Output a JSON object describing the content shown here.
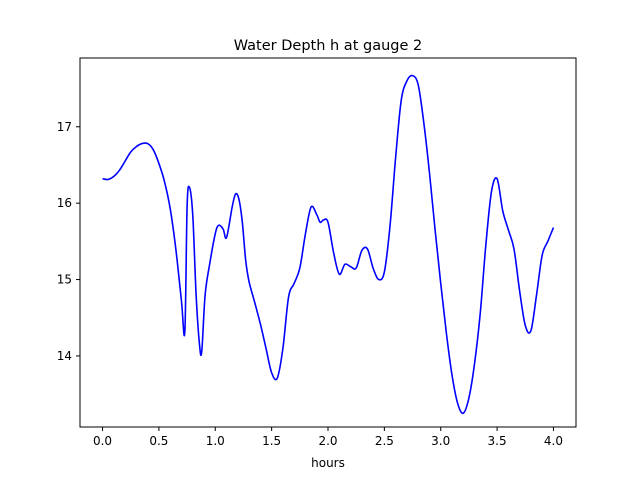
{
  "chart_data": {
    "type": "line",
    "title": "Water Depth h at gauge 2",
    "xlabel": "hours",
    "ylabel": "",
    "xlim": [
      -0.2,
      4.2
    ],
    "ylim": [
      13.07,
      17.9
    ],
    "xticks": [
      0.0,
      0.5,
      1.0,
      1.5,
      2.0,
      2.5,
      3.0,
      3.5,
      4.0
    ],
    "xtick_labels": [
      "0.0",
      "0.5",
      "1.0",
      "1.5",
      "2.0",
      "2.5",
      "3.0",
      "3.5",
      "4.0"
    ],
    "yticks": [
      14,
      15,
      16,
      17
    ],
    "ytick_labels": [
      "14",
      "15",
      "16",
      "17"
    ],
    "grid": false,
    "legend": "none",
    "series": [
      {
        "color": "#0000ff",
        "x": [
          0.0,
          0.05,
          0.1,
          0.15,
          0.2,
          0.25,
          0.3,
          0.35,
          0.4,
          0.45,
          0.5,
          0.55,
          0.6,
          0.65,
          0.7,
          0.73,
          0.75,
          0.77,
          0.8,
          0.83,
          0.86,
          0.88,
          0.91,
          0.95,
          1.0,
          1.03,
          1.07,
          1.1,
          1.15,
          1.18,
          1.21,
          1.24,
          1.27,
          1.3,
          1.35,
          1.4,
          1.45,
          1.5,
          1.55,
          1.6,
          1.65,
          1.7,
          1.75,
          1.8,
          1.85,
          1.9,
          1.93,
          1.96,
          2.0,
          2.05,
          2.1,
          2.15,
          2.2,
          2.25,
          2.3,
          2.35,
          2.4,
          2.45,
          2.5,
          2.55,
          2.6,
          2.65,
          2.7,
          2.75,
          2.8,
          2.85,
          2.9,
          2.95,
          3.0,
          3.05,
          3.1,
          3.15,
          3.2,
          3.25,
          3.3,
          3.35,
          3.4,
          3.45,
          3.5,
          3.55,
          3.6,
          3.65,
          3.7,
          3.75,
          3.8,
          3.85,
          3.9,
          3.95,
          4.0
        ],
        "y": [
          16.32,
          16.31,
          16.35,
          16.43,
          16.55,
          16.67,
          16.74,
          16.78,
          16.78,
          16.7,
          16.52,
          16.28,
          15.93,
          15.4,
          14.72,
          14.32,
          15.95,
          16.21,
          15.85,
          14.8,
          14.15,
          14.06,
          14.8,
          15.2,
          15.6,
          15.71,
          15.66,
          15.55,
          15.95,
          16.12,
          16.05,
          15.75,
          15.25,
          14.97,
          14.7,
          14.42,
          14.1,
          13.78,
          13.71,
          14.1,
          14.77,
          14.95,
          15.15,
          15.6,
          15.95,
          15.85,
          15.75,
          15.78,
          15.75,
          15.35,
          15.07,
          15.2,
          15.17,
          15.15,
          15.38,
          15.4,
          15.15,
          15.0,
          15.1,
          15.7,
          16.6,
          17.35,
          17.6,
          17.67,
          17.55,
          17.05,
          16.4,
          15.65,
          14.95,
          14.3,
          13.75,
          13.38,
          13.25,
          13.45,
          13.9,
          14.55,
          15.45,
          16.15,
          16.32,
          15.9,
          15.65,
          15.4,
          14.85,
          14.4,
          14.33,
          14.8,
          15.32,
          15.5,
          15.68
        ]
      }
    ]
  }
}
